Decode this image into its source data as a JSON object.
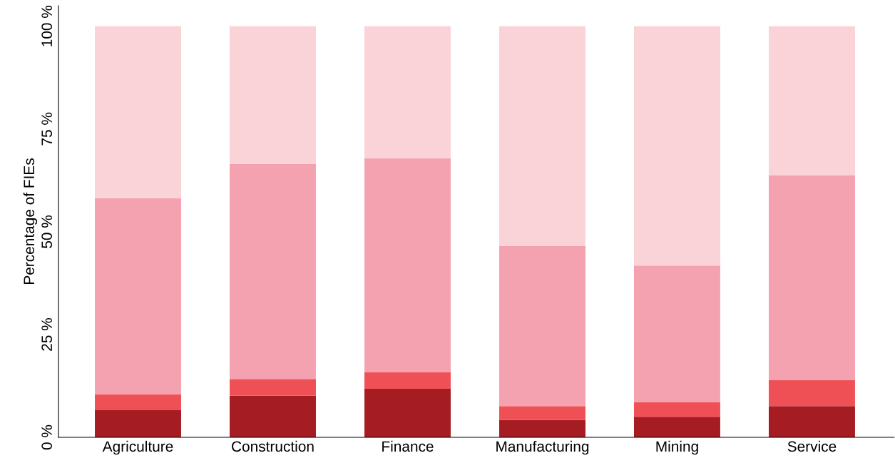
{
  "chart_data": {
    "type": "bar",
    "stacked": true,
    "ylabel": "Percentage of FIEs",
    "categories": [
      "Agriculture",
      "Construction",
      "Finance",
      "Manufacturing",
      "Mining",
      "Service"
    ],
    "series": [
      {
        "color": "#a51c22",
        "values": [
          6.6,
          10.1,
          11.8,
          4.2,
          5.0,
          7.6
        ]
      },
      {
        "color": "#ef5055",
        "values": [
          3.8,
          4.1,
          4.0,
          3.4,
          3.5,
          6.3
        ]
      },
      {
        "color": "#f4a2b0",
        "values": [
          47.8,
          52.3,
          52.1,
          38.9,
          33.3,
          49.8
        ]
      },
      {
        "color": "#fad3d9",
        "values": [
          41.8,
          33.5,
          32.1,
          53.5,
          58.2,
          36.3
        ]
      }
    ],
    "ylim": [
      0,
      105
    ],
    "yticks": [
      {
        "value": 0,
        "label": "0 %"
      },
      {
        "value": 25,
        "label": "25 %"
      },
      {
        "value": 50,
        "label": "50 %"
      },
      {
        "value": 75,
        "label": "75 %"
      },
      {
        "value": 100,
        "label": "100 %"
      }
    ],
    "grid": false,
    "legend": false
  }
}
